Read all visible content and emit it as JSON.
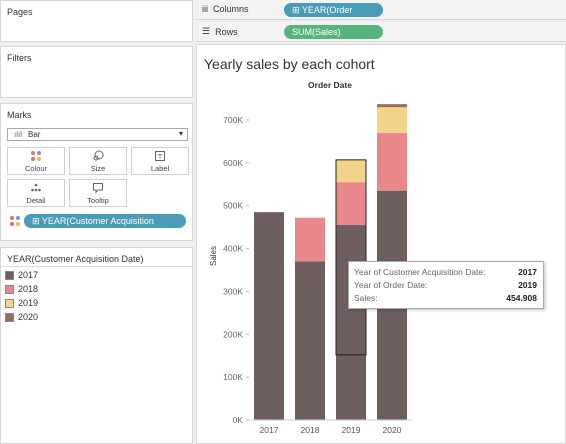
{
  "sidebar": {
    "pages_title": "Pages",
    "filters_title": "Filters",
    "marks_title": "Marks",
    "mark_type": "Bar",
    "buttons": [
      {
        "label": "Colour",
        "icon": "colour-dots-icon"
      },
      {
        "label": "Size",
        "icon": "size-icon"
      },
      {
        "label": "Label",
        "icon": "label-icon"
      },
      {
        "label": "Detail",
        "icon": "detail-icon"
      },
      {
        "label": "Tooltip",
        "icon": "tooltip-icon"
      }
    ],
    "colour_pill": "YEAR(Customer Acquisition Date)",
    "legend_title": "YEAR(Customer Acquisition Date)",
    "legend": [
      {
        "label": "2017",
        "color": "#6e5e5e"
      },
      {
        "label": "2018",
        "color": "#e8888a"
      },
      {
        "label": "2019",
        "color": "#f2d38a"
      },
      {
        "label": "2020",
        "color": "#9b6b58"
      }
    ]
  },
  "shelves": {
    "columns_label": "Columns",
    "columns_pill": "YEAR(Order Date)",
    "rows_label": "Rows",
    "rows_pill": "SUM(Sales)"
  },
  "chart_data": {
    "type": "bar",
    "stacked": true,
    "title": "Yearly sales by each cohort",
    "header": "Order Date",
    "ylabel": "Sales",
    "categories": [
      "2017",
      "2018",
      "2019",
      "2020"
    ],
    "yticks": [
      "0K",
      "100K",
      "200K",
      "300K",
      "400K",
      "500K",
      "600K",
      "700K"
    ],
    "ylim": [
      0,
      735000
    ],
    "series": [
      {
        "name": "2017",
        "color": "#6e5e5e",
        "values": [
          485000,
          370000,
          455000,
          535000
        ]
      },
      {
        "name": "2018",
        "color": "#e8888a",
        "values": [
          0,
          102000,
          100000,
          135000
        ]
      },
      {
        "name": "2019",
        "color": "#f2d38a",
        "values": [
          0,
          0,
          52000,
          60000
        ]
      },
      {
        "name": "2020",
        "color": "#9b6b58",
        "values": [
          0,
          0,
          0,
          7000
        ]
      }
    ]
  },
  "tooltip": {
    "rows": [
      {
        "key": "Year of Customer Acquisition Date:",
        "value": "2017"
      },
      {
        "key": "Year of Order Date:",
        "value": "2019"
      },
      {
        "key": "Sales:",
        "value": "454.908"
      }
    ]
  }
}
